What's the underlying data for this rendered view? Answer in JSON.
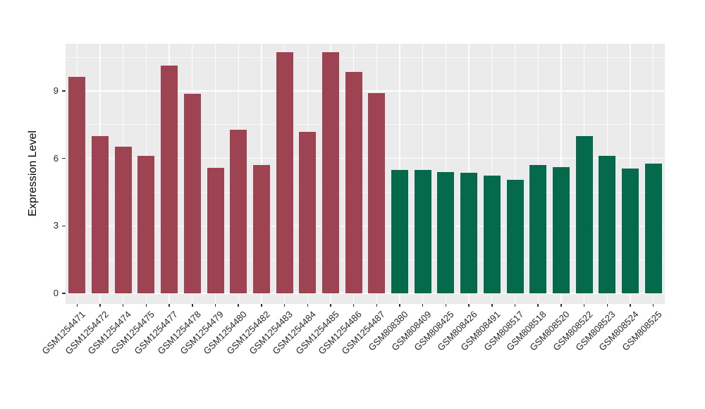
{
  "figure": {
    "background": "#FFFFFF",
    "panel_background": "#EBEBEB",
    "gridline_color": "#FFFFFF",
    "tick_color": "#333333",
    "axis_text_color": "#262626"
  },
  "chart_data": {
    "type": "bar",
    "title": "",
    "xlabel": "",
    "ylabel": "Expression Level",
    "ylim": [
      0,
      11.1
    ],
    "yticks": [
      0,
      3,
      6,
      9
    ],
    "grid": true,
    "legend_position": "none",
    "groups": [
      {
        "id": "GSM1254",
        "color": "#9D4352"
      },
      {
        "id": "GSM808",
        "color": "#046A4B"
      }
    ],
    "bars": [
      {
        "label": "GSM1254471",
        "value": 9.62,
        "group": "GSM1254"
      },
      {
        "label": "GSM1254472",
        "value": 6.98,
        "group": "GSM1254"
      },
      {
        "label": "GSM1254474",
        "value": 6.53,
        "group": "GSM1254"
      },
      {
        "label": "GSM1254475",
        "value": 6.11,
        "group": "GSM1254"
      },
      {
        "label": "GSM1254477",
        "value": 10.12,
        "group": "GSM1254"
      },
      {
        "label": "GSM1254478",
        "value": 8.88,
        "group": "GSM1254"
      },
      {
        "label": "GSM1254479",
        "value": 5.57,
        "group": "GSM1254"
      },
      {
        "label": "GSM1254480",
        "value": 7.27,
        "group": "GSM1254"
      },
      {
        "label": "GSM1254482",
        "value": 5.7,
        "group": "GSM1254"
      },
      {
        "label": "GSM1254483",
        "value": 10.71,
        "group": "GSM1254"
      },
      {
        "label": "GSM1254484",
        "value": 7.17,
        "group": "GSM1254"
      },
      {
        "label": "GSM1254485",
        "value": 10.73,
        "group": "GSM1254"
      },
      {
        "label": "GSM1254486",
        "value": 9.84,
        "group": "GSM1254"
      },
      {
        "label": "GSM1254487",
        "value": 8.9,
        "group": "GSM1254"
      },
      {
        "label": "GSM808380",
        "value": 5.5,
        "group": "GSM808"
      },
      {
        "label": "GSM808409",
        "value": 5.5,
        "group": "GSM808"
      },
      {
        "label": "GSM808425",
        "value": 5.4,
        "group": "GSM808"
      },
      {
        "label": "GSM808426",
        "value": 5.36,
        "group": "GSM808"
      },
      {
        "label": "GSM808491",
        "value": 5.25,
        "group": "GSM808"
      },
      {
        "label": "GSM808517",
        "value": 5.05,
        "group": "GSM808"
      },
      {
        "label": "GSM808518",
        "value": 5.7,
        "group": "GSM808"
      },
      {
        "label": "GSM808520",
        "value": 5.62,
        "group": "GSM808"
      },
      {
        "label": "GSM808522",
        "value": 7.0,
        "group": "GSM808"
      },
      {
        "label": "GSM808523",
        "value": 6.11,
        "group": "GSM808"
      },
      {
        "label": "GSM808524",
        "value": 5.55,
        "group": "GSM808"
      },
      {
        "label": "GSM808525",
        "value": 5.78,
        "group": "GSM808"
      }
    ]
  }
}
